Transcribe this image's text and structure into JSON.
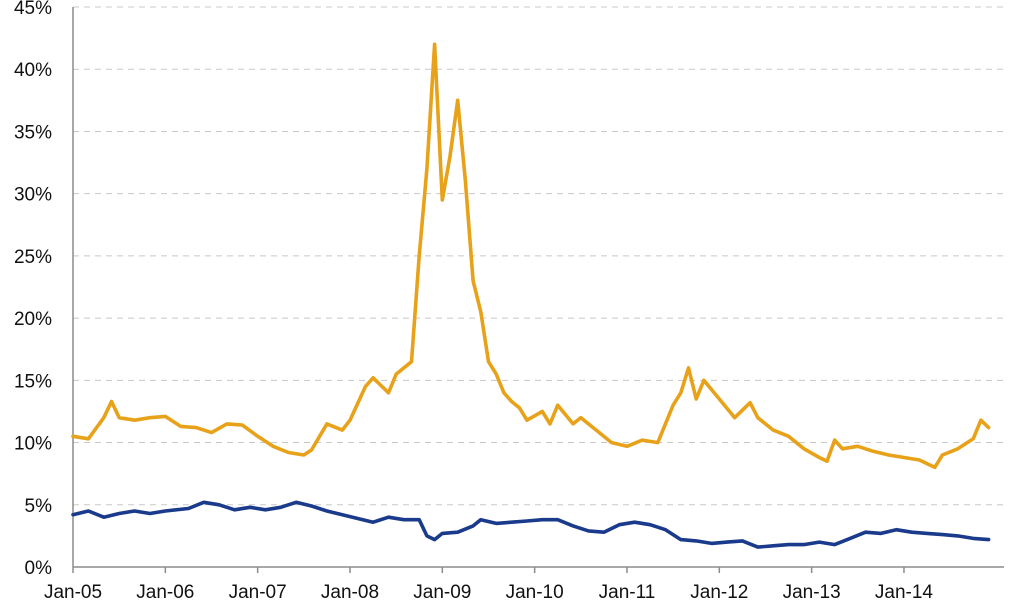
{
  "chart_data": {
    "type": "line",
    "title": "",
    "xlabel": "",
    "ylabel": "",
    "x_tick_labels": [
      "Jan-05",
      "Jan-06",
      "Jan-07",
      "Jan-08",
      "Jan-09",
      "Jan-10",
      "Jan-11",
      "Jan-12",
      "Jan-13",
      "Jan-14"
    ],
    "y_tick_labels": [
      "0%",
      "5%",
      "10%",
      "15%",
      "20%",
      "25%",
      "30%",
      "35%",
      "40%",
      "45%"
    ],
    "ylim": [
      0,
      45
    ],
    "xlim": [
      "2005-01",
      "2015-02"
    ],
    "grid": true,
    "legend": "none",
    "series": [
      {
        "color": "#E8A21A",
        "points": [
          [
            "2005-01",
            10.5
          ],
          [
            "2005-03",
            10.3
          ],
          [
            "2005-05",
            12.0
          ],
          [
            "2005-06",
            13.3
          ],
          [
            "2005-07",
            12.0
          ],
          [
            "2005-09",
            11.8
          ],
          [
            "2005-11",
            12.0
          ],
          [
            "2006-01",
            12.1
          ],
          [
            "2006-03",
            11.3
          ],
          [
            "2006-05",
            11.2
          ],
          [
            "2006-07",
            10.8
          ],
          [
            "2006-09",
            11.5
          ],
          [
            "2006-11",
            11.4
          ],
          [
            "2007-01",
            10.5
          ],
          [
            "2007-03",
            9.7
          ],
          [
            "2007-05",
            9.2
          ],
          [
            "2007-07",
            9.0
          ],
          [
            "2007-08",
            9.4
          ],
          [
            "2007-10",
            11.5
          ],
          [
            "2007-12",
            11.0
          ],
          [
            "2008-01",
            11.8
          ],
          [
            "2008-03",
            14.5
          ],
          [
            "2008-04",
            15.2
          ],
          [
            "2008-06",
            14.0
          ],
          [
            "2008-07",
            15.5
          ],
          [
            "2008-09",
            16.5
          ],
          [
            "2008-10",
            25.0
          ],
          [
            "2008-11",
            32.0
          ],
          [
            "2008-12",
            42.0
          ],
          [
            "2009-01",
            29.5
          ],
          [
            "2009-02",
            33.0
          ],
          [
            "2009-03",
            37.5
          ],
          [
            "2009-04",
            31.0
          ],
          [
            "2009-05",
            23.0
          ],
          [
            "2009-06",
            20.5
          ],
          [
            "2009-07",
            16.5
          ],
          [
            "2009-08",
            15.5
          ],
          [
            "2009-09",
            14.0
          ],
          [
            "2009-10",
            13.3
          ],
          [
            "2009-11",
            12.8
          ],
          [
            "2009-12",
            11.8
          ],
          [
            "2010-02",
            12.5
          ],
          [
            "2010-03",
            11.5
          ],
          [
            "2010-04",
            13.0
          ],
          [
            "2010-06",
            11.5
          ],
          [
            "2010-07",
            12.0
          ],
          [
            "2010-09",
            11.0
          ],
          [
            "2010-11",
            10.0
          ],
          [
            "2011-01",
            9.7
          ],
          [
            "2011-03",
            10.2
          ],
          [
            "2011-05",
            10.0
          ],
          [
            "2011-07",
            13.0
          ],
          [
            "2011-08",
            14.0
          ],
          [
            "2011-09",
            16.0
          ],
          [
            "2011-10",
            13.5
          ],
          [
            "2011-11",
            15.0
          ],
          [
            "2012-01",
            13.5
          ],
          [
            "2012-03",
            12.0
          ],
          [
            "2012-05",
            13.2
          ],
          [
            "2012-06",
            12.0
          ],
          [
            "2012-08",
            11.0
          ],
          [
            "2012-10",
            10.5
          ],
          [
            "2012-12",
            9.5
          ],
          [
            "2013-02",
            8.8
          ],
          [
            "2013-03",
            8.5
          ],
          [
            "2013-04",
            10.2
          ],
          [
            "2013-05",
            9.5
          ],
          [
            "2013-07",
            9.7
          ],
          [
            "2013-09",
            9.3
          ],
          [
            "2013-11",
            9.0
          ],
          [
            "2014-01",
            8.8
          ],
          [
            "2014-03",
            8.6
          ],
          [
            "2014-05",
            8.0
          ],
          [
            "2014-06",
            9.0
          ],
          [
            "2014-08",
            9.5
          ],
          [
            "2014-10",
            10.3
          ],
          [
            "2014-11",
            11.8
          ],
          [
            "2014-12",
            11.2
          ]
        ]
      },
      {
        "color": "#1A3A8C",
        "points": [
          [
            "2005-01",
            4.2
          ],
          [
            "2005-03",
            4.5
          ],
          [
            "2005-05",
            4.0
          ],
          [
            "2005-07",
            4.3
          ],
          [
            "2005-09",
            4.5
          ],
          [
            "2005-11",
            4.3
          ],
          [
            "2006-01",
            4.5
          ],
          [
            "2006-04",
            4.7
          ],
          [
            "2006-06",
            5.2
          ],
          [
            "2006-08",
            5.0
          ],
          [
            "2006-10",
            4.6
          ],
          [
            "2006-12",
            4.8
          ],
          [
            "2007-02",
            4.6
          ],
          [
            "2007-04",
            4.8
          ],
          [
            "2007-06",
            5.2
          ],
          [
            "2007-08",
            4.9
          ],
          [
            "2007-10",
            4.5
          ],
          [
            "2007-12",
            4.2
          ],
          [
            "2008-02",
            3.9
          ],
          [
            "2008-04",
            3.6
          ],
          [
            "2008-06",
            4.0
          ],
          [
            "2008-08",
            3.8
          ],
          [
            "2008-10",
            3.8
          ],
          [
            "2008-11",
            2.5
          ],
          [
            "2008-12",
            2.2
          ],
          [
            "2009-01",
            2.7
          ],
          [
            "2009-03",
            2.8
          ],
          [
            "2009-05",
            3.3
          ],
          [
            "2009-06",
            3.8
          ],
          [
            "2009-08",
            3.5
          ],
          [
            "2009-10",
            3.6
          ],
          [
            "2009-12",
            3.7
          ],
          [
            "2010-02",
            3.8
          ],
          [
            "2010-04",
            3.8
          ],
          [
            "2010-06",
            3.3
          ],
          [
            "2010-08",
            2.9
          ],
          [
            "2010-10",
            2.8
          ],
          [
            "2010-12",
            3.4
          ],
          [
            "2011-02",
            3.6
          ],
          [
            "2011-04",
            3.4
          ],
          [
            "2011-06",
            3.0
          ],
          [
            "2011-08",
            2.2
          ],
          [
            "2011-10",
            2.1
          ],
          [
            "2011-12",
            1.9
          ],
          [
            "2012-02",
            2.0
          ],
          [
            "2012-04",
            2.1
          ],
          [
            "2012-06",
            1.6
          ],
          [
            "2012-08",
            1.7
          ],
          [
            "2012-10",
            1.8
          ],
          [
            "2012-12",
            1.8
          ],
          [
            "2013-02",
            2.0
          ],
          [
            "2013-04",
            1.8
          ],
          [
            "2013-06",
            2.3
          ],
          [
            "2013-08",
            2.8
          ],
          [
            "2013-10",
            2.7
          ],
          [
            "2013-12",
            3.0
          ],
          [
            "2014-02",
            2.8
          ],
          [
            "2014-04",
            2.7
          ],
          [
            "2014-06",
            2.6
          ],
          [
            "2014-08",
            2.5
          ],
          [
            "2014-10",
            2.3
          ],
          [
            "2014-12",
            2.2
          ]
        ]
      }
    ]
  }
}
